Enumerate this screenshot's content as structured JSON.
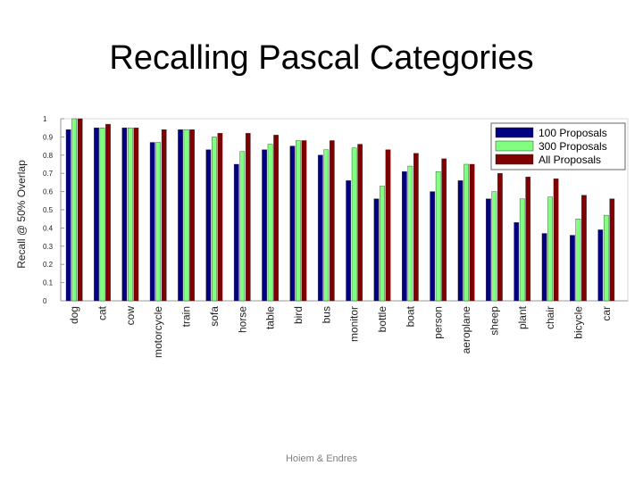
{
  "slide": {
    "title": "Recalling Pascal Categories",
    "footer": "Hoiem & Endres"
  },
  "chart_data": {
    "type": "bar",
    "title": "",
    "xlabel": "",
    "ylabel": "Recall @ 50% Overlap",
    "ylim": [
      0,
      1
    ],
    "yticks": [
      "0",
      "0.1",
      "0.2",
      "0.3",
      "0.4",
      "0.5",
      "0.6",
      "0.7",
      "0.8",
      "0.9",
      "1"
    ],
    "grid": false,
    "legend_position": "top-right",
    "categories": [
      "dog",
      "cat",
      "cow",
      "motorcycle",
      "train",
      "sofa",
      "horse",
      "table",
      "bird",
      "bus",
      "monitor",
      "bottle",
      "boat",
      "person",
      "aeroplane",
      "sheep",
      "plant",
      "chair",
      "bicycle",
      "car"
    ],
    "series": [
      {
        "name": "100 Proposals",
        "color": "#000080",
        "values": [
          0.94,
          0.95,
          0.95,
          0.87,
          0.94,
          0.83,
          0.75,
          0.83,
          0.85,
          0.8,
          0.66,
          0.56,
          0.71,
          0.6,
          0.66,
          0.56,
          0.43,
          0.37,
          0.36,
          0.39
        ]
      },
      {
        "name": "300 Proposals",
        "color": "#80ff80",
        "values": [
          1.0,
          0.95,
          0.95,
          0.87,
          0.94,
          0.9,
          0.82,
          0.86,
          0.88,
          0.83,
          0.84,
          0.63,
          0.74,
          0.71,
          0.75,
          0.6,
          0.56,
          0.57,
          0.45,
          0.47
        ]
      },
      {
        "name": "All Proposals",
        "color": "#800000",
        "values": [
          1.0,
          0.97,
          0.95,
          0.94,
          0.94,
          0.92,
          0.92,
          0.91,
          0.88,
          0.88,
          0.86,
          0.83,
          0.81,
          0.78,
          0.75,
          0.7,
          0.68,
          0.67,
          0.58,
          0.56
        ]
      }
    ]
  }
}
